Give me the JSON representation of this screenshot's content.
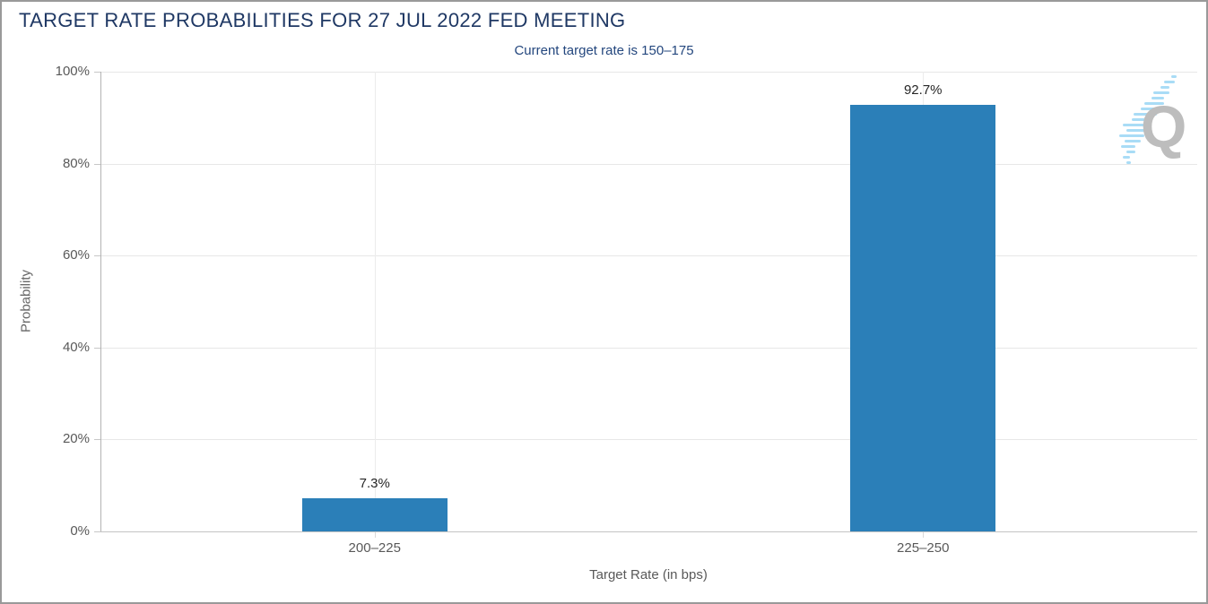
{
  "chart_data": {
    "type": "bar",
    "title": "TARGET RATE PROBABILITIES FOR 27 JUL 2022 FED MEETING",
    "subtitle": "Current target rate is 150–175",
    "categories": [
      "200–225",
      "225–250"
    ],
    "values": [
      7.3,
      92.7
    ],
    "value_labels": [
      "7.3%",
      "92.7%"
    ],
    "xlabel": "Target Rate (in bps)",
    "ylabel": "Probability",
    "ylim": [
      0,
      100
    ],
    "ytick_labels": [
      "0%",
      "20%",
      "40%",
      "60%",
      "80%",
      "100%"
    ],
    "ytick_step": 20,
    "grid": true,
    "legend": false,
    "bar_color": "#2B7FB8"
  },
  "logo": {
    "letter": "Q",
    "name": "quikstrike-watermark",
    "gray": "#BDBDBD",
    "blue": "#A9DCF6"
  },
  "colors": {
    "title_text": "#1F3864",
    "subtitle_text": "#24477E",
    "frame_border": "#999999",
    "gridline": "#E7E7E7",
    "axis_line": "#B4B4B4",
    "tick_text": "#595959",
    "value_text": "#262626",
    "background": "#FFFFFF"
  }
}
